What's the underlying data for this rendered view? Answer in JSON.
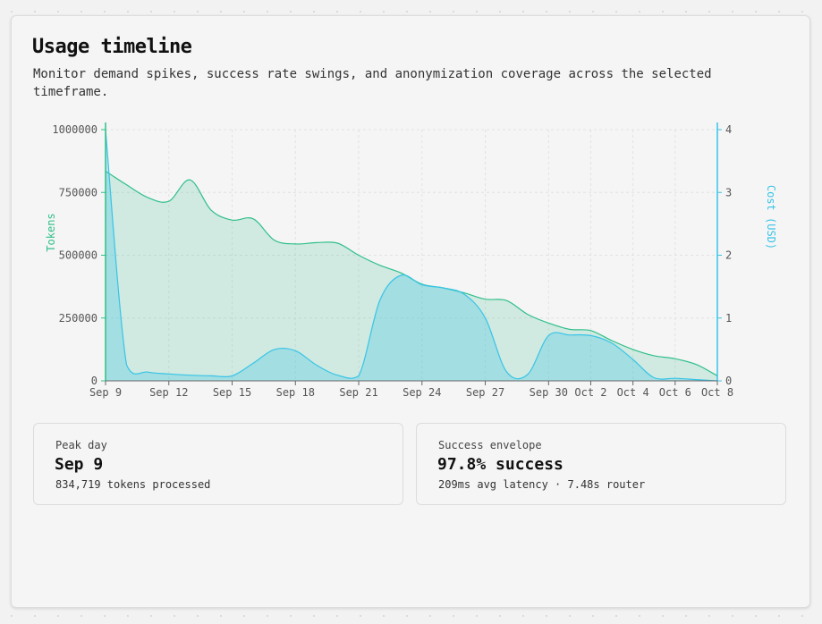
{
  "page": {
    "title": "Usage timeline",
    "subtitle": "Monitor demand spikes, success rate swings, and anonymization coverage across the selected timeframe."
  },
  "stats": {
    "peak": {
      "label": "Peak day",
      "value": "Sep 9",
      "detail": "834,719 tokens processed"
    },
    "success": {
      "label": "Success envelope",
      "value": "97.8% success",
      "detail": "209ms avg latency · 7.48s router"
    }
  },
  "colors": {
    "tokens": "#2fbf8a",
    "cost": "#38c4e6"
  },
  "chart_data": {
    "type": "area",
    "title": "",
    "x_dates": [
      "Sep 9",
      "Sep 10",
      "Sep 11",
      "Sep 12",
      "Sep 13",
      "Sep 14",
      "Sep 15",
      "Sep 16",
      "Sep 17",
      "Sep 18",
      "Sep 19",
      "Sep 20",
      "Sep 21",
      "Sep 22",
      "Sep 23",
      "Sep 24",
      "Sep 25",
      "Sep 26",
      "Sep 27",
      "Sep 28",
      "Sep 29",
      "Sep 30",
      "Oct 1",
      "Oct 2",
      "Oct 3",
      "Oct 4",
      "Oct 5",
      "Oct 6",
      "Oct 7",
      "Oct 8"
    ],
    "x_ticks": [
      "Sep 9",
      "Sep 12",
      "Sep 15",
      "Sep 18",
      "Sep 21",
      "Sep 24",
      "Sep 27",
      "Sep 30",
      "Oct 2",
      "Oct 4",
      "Oct 6",
      "Oct 8"
    ],
    "y_left": {
      "label": "Tokens",
      "range": [
        0,
        1000000
      ],
      "ticks": [
        "0",
        "250000",
        "500000",
        "750000",
        "1000000"
      ]
    },
    "y_right": {
      "label": "Cost (USD)",
      "range": [
        0,
        4
      ],
      "ticks": [
        "0",
        "1",
        "2",
        "3",
        "4"
      ]
    },
    "grid": true,
    "series": [
      {
        "axis": "left",
        "color": "#2fbf8a",
        "values": [
          834719,
          780000,
          730000,
          715000,
          800000,
          680000,
          640000,
          645000,
          560000,
          545000,
          550000,
          548000,
          500000,
          460000,
          430000,
          385000,
          370000,
          350000,
          325000,
          320000,
          265000,
          230000,
          205000,
          200000,
          160000,
          125000,
          100000,
          88000,
          65000,
          20000
        ]
      },
      {
        "axis": "right",
        "color": "#38c4e6",
        "values": [
          4.0,
          0.25,
          0.14,
          0.11,
          0.09,
          0.08,
          0.08,
          0.28,
          0.5,
          0.48,
          0.25,
          0.09,
          0.08,
          1.28,
          1.68,
          1.53,
          1.48,
          1.38,
          1.0,
          0.15,
          0.1,
          0.72,
          0.73,
          0.72,
          0.6,
          0.34,
          0.05,
          0.04,
          0.02,
          0.0
        ]
      }
    ]
  }
}
